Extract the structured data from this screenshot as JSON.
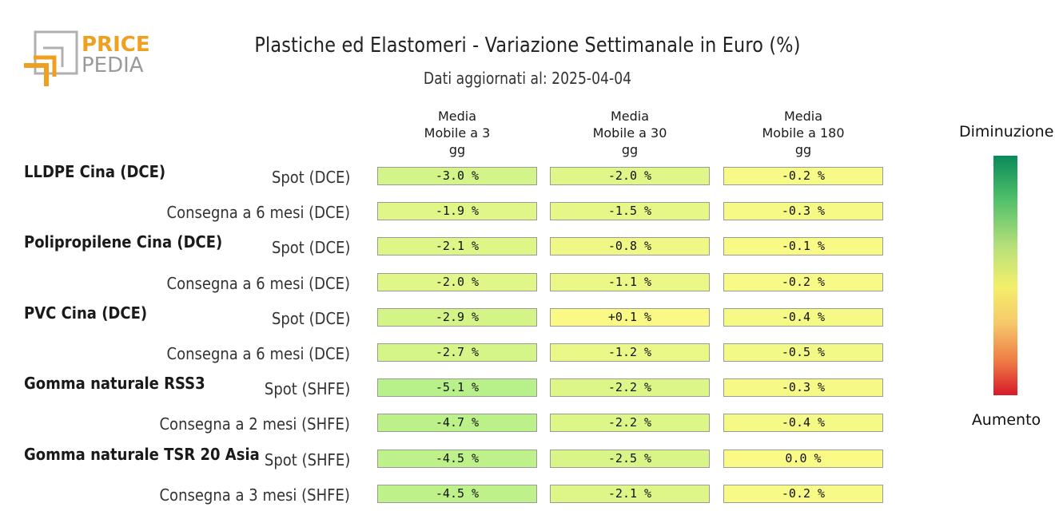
{
  "logo": {
    "line1": "PRICE",
    "line2": "PEDIA"
  },
  "title": "Plastiche ed Elastomeri - Variazione Settimanale in Euro (%)",
  "subtitle": "Dati aggiornati al: 2025-04-04",
  "legend": {
    "top": "Diminuzione",
    "bottom": "Aumento"
  },
  "colors": {
    "brand_orange": "#f0a020",
    "brand_gray": "#9a9a9a"
  },
  "chart_data": {
    "type": "table",
    "title": "Plastiche ed Elastomeri - Variazione Settimanale in Euro (%)",
    "columns": [
      [
        "Media",
        "Mobile a 3",
        "gg"
      ],
      [
        "Media",
        "Mobile a 30",
        "gg"
      ],
      [
        "Media",
        "Mobile a 180",
        "gg"
      ]
    ],
    "groups": [
      {
        "name": "LLDPE Cina (DCE)",
        "rows": [
          {
            "label": "Spot (DCE)",
            "values": [
              -3.0,
              -2.0,
              -0.2
            ],
            "display": [
              "-3.0 %",
              "-2.0 %",
              "-0.2 %"
            ]
          },
          {
            "label": "Consegna a 6 mesi (DCE)",
            "values": [
              -1.9,
              -1.5,
              -0.3
            ],
            "display": [
              "-1.9 %",
              "-1.5 %",
              "-0.3 %"
            ]
          }
        ]
      },
      {
        "name": "Polipropilene Cina (DCE)",
        "rows": [
          {
            "label": "Spot (DCE)",
            "values": [
              -2.1,
              -0.8,
              -0.1
            ],
            "display": [
              "-2.1 %",
              "-0.8 %",
              "-0.1 %"
            ]
          },
          {
            "label": "Consegna a 6 mesi (DCE)",
            "values": [
              -2.0,
              -1.1,
              -0.2
            ],
            "display": [
              "-2.0 %",
              "-1.1 %",
              "-0.2 %"
            ]
          }
        ]
      },
      {
        "name": "PVC Cina (DCE)",
        "rows": [
          {
            "label": "Spot (DCE)",
            "values": [
              -2.9,
              0.1,
              -0.4
            ],
            "display": [
              "-2.9 %",
              "+0.1 %",
              "-0.4 %"
            ]
          },
          {
            "label": "Consegna a 6 mesi (DCE)",
            "values": [
              -2.7,
              -1.2,
              -0.5
            ],
            "display": [
              "-2.7 %",
              "-1.2 %",
              "-0.5 %"
            ]
          }
        ]
      },
      {
        "name": "Gomma naturale RSS3",
        "rows": [
          {
            "label": "Spot (SHFE)",
            "values": [
              -5.1,
              -2.2,
              -0.3
            ],
            "display": [
              "-5.1 %",
              "-2.2 %",
              "-0.3 %"
            ]
          },
          {
            "label": "Consegna a 2 mesi (SHFE)",
            "values": [
              -4.7,
              -2.2,
              -0.4
            ],
            "display": [
              "-4.7 %",
              "-2.2 %",
              "-0.4 %"
            ]
          }
        ]
      },
      {
        "name": "Gomma naturale TSR 20 Asia",
        "rows": [
          {
            "label": "Spot (SHFE)",
            "values": [
              -4.5,
              -2.5,
              0.0
            ],
            "display": [
              "-4.5 %",
              "-2.5 %",
              "0.0 %"
            ]
          },
          {
            "label": "Consegna a 3 mesi (SHFE)",
            "values": [
              -4.5,
              -2.1,
              -0.2
            ],
            "display": [
              "-4.5 %",
              "-2.1 %",
              "-0.2 %"
            ]
          }
        ]
      }
    ],
    "color_scale": {
      "top_label": "Diminuzione",
      "bottom_label": "Aumento",
      "stops": [
        "#0a8a5a",
        "#4fbf6a",
        "#b7e07a",
        "#f4ef6a",
        "#f6c86a",
        "#ee7a45",
        "#d7192a"
      ]
    }
  }
}
